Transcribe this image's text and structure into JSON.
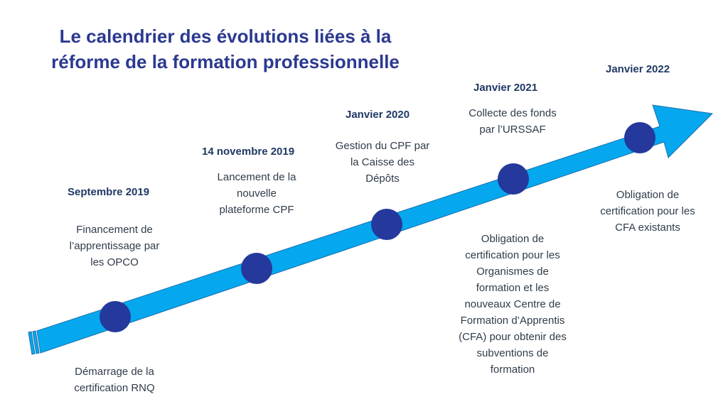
{
  "title": {
    "line1": "Le calendrier des évolutions liées à la",
    "line2": "réforme de la formation professionnelle"
  },
  "colors": {
    "arrow": "#05a8ee",
    "arrow_stroke": "#1b6fae",
    "milestone": "#25389c",
    "title": "#2b3990",
    "date": "#1f3864"
  },
  "milestones": [
    {
      "date": "Septembre 2019",
      "above": [
        "Financement de",
        "l’apprentissage par",
        "les OPCO"
      ],
      "below": [
        "Démarrage de la",
        "certification RNQ"
      ]
    },
    {
      "date": "14 novembre 2019",
      "above": [
        "Lancement de la",
        "nouvelle",
        "plateforme CPF"
      ]
    },
    {
      "date": "Janvier 2020",
      "above": [
        "Gestion du CPF par",
        "la Caisse des",
        "Dépôts"
      ]
    },
    {
      "date": "Janvier 2021",
      "above": [
        "Collecte des fonds",
        "par l’URSSAF"
      ],
      "below": [
        "Obligation de",
        "certification pour les",
        "Organismes de",
        "formation et les",
        "nouveaux Centre de",
        "Formation d’Apprentis",
        "(CFA) pour obtenir des",
        "subventions de",
        "formation"
      ]
    },
    {
      "date": "Janvier 2022",
      "below": [
        "Obligation de",
        "certification pour les",
        "CFA existants"
      ]
    }
  ]
}
